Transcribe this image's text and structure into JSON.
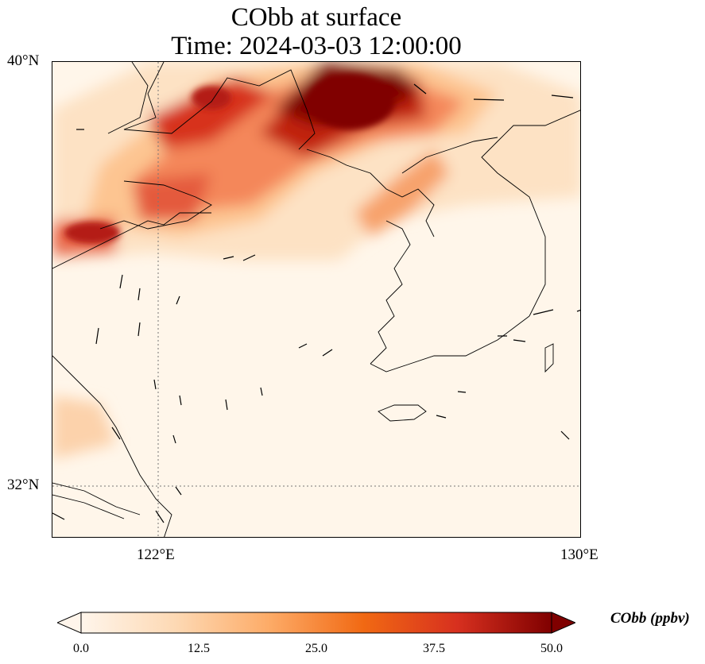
{
  "title": {
    "line1": "CObb at surface",
    "line2": "Time: 2024-03-03 12:00:00"
  },
  "axes": {
    "lat_labels": [
      "40°N",
      "32°N"
    ],
    "lon_labels": [
      "122°E",
      "130°E"
    ]
  },
  "colorbar": {
    "label": "CObb (ppbv)",
    "ticks": [
      "0.0",
      "12.5",
      "25.0",
      "37.5",
      "50.0"
    ],
    "colormap": [
      "#fff5eb",
      "#fdd9b4",
      "#fdab67",
      "#f16913",
      "#d7301f",
      "#7f0000"
    ]
  },
  "map": {
    "extent": {
      "lon_min": 120,
      "lon_max": 130,
      "lat_min": 31,
      "lat_max": 40
    },
    "background_color": "#fff6ea"
  },
  "chart_data": {
    "type": "heatmap",
    "variable": "CObb",
    "units": "ppbv",
    "vmin": 0,
    "vmax": 50,
    "plumes": [
      {
        "lon": 125.7,
        "lat": 39.35,
        "value": 50
      },
      {
        "lon": 126.5,
        "lat": 39.25,
        "value": 48
      },
      {
        "lon": 124.3,
        "lat": 39.5,
        "value": 42
      },
      {
        "lon": 122.8,
        "lat": 39.55,
        "value": 35
      },
      {
        "lon": 122.2,
        "lat": 38.3,
        "value": 28
      },
      {
        "lon": 120.8,
        "lat": 36.7,
        "value": 36
      },
      {
        "lon": 125.5,
        "lat": 37.5,
        "value": 22
      },
      {
        "lon": 121.0,
        "lat": 32.9,
        "value": 12
      }
    ],
    "wind_vectors": [
      {
        "lon": 120.5,
        "lat": 37.7,
        "u": 1,
        "v": 0
      },
      {
        "lon": 121.3,
        "lat": 34.3,
        "u": 0.1,
        "v": 1
      },
      {
        "lon": 121.6,
        "lat": 33.8,
        "u": 0.1,
        "v": 1
      },
      {
        "lon": 121.9,
        "lat": 32.9,
        "u": -0.2,
        "v": 1
      },
      {
        "lon": 122.3,
        "lat": 34.8,
        "u": 0.2,
        "v": 1
      },
      {
        "lon": 123.2,
        "lat": 34.5,
        "u": 0.3,
        "v": 1
      },
      {
        "lon": 124.6,
        "lat": 34.0,
        "u": 0.8,
        "v": 0.5
      },
      {
        "lon": 127.0,
        "lat": 35.6,
        "u": 1,
        "v": -0.1
      },
      {
        "lon": 129.0,
        "lat": 35.6,
        "u": 1,
        "v": 0.3
      },
      {
        "lon": 128.1,
        "lat": 39.2,
        "u": 1,
        "v": 0
      },
      {
        "lon": 129.6,
        "lat": 39.2,
        "u": 1,
        "v": 0.1
      },
      {
        "lon": 127.5,
        "lat": 33.4,
        "u": 0.8,
        "v": -0.3
      },
      {
        "lon": 124.2,
        "lat": 32.6,
        "u": 0,
        "v": 1
      },
      {
        "lon": 122.5,
        "lat": 31.3,
        "u": 0.4,
        "v": -1
      },
      {
        "lon": 126.0,
        "lat": 33.2,
        "u": 1,
        "v": -0.1
      }
    ],
    "gridlines": {
      "lon": [
        122,
        130
      ],
      "lat": [
        32,
        40
      ],
      "style": "dotted"
    }
  }
}
